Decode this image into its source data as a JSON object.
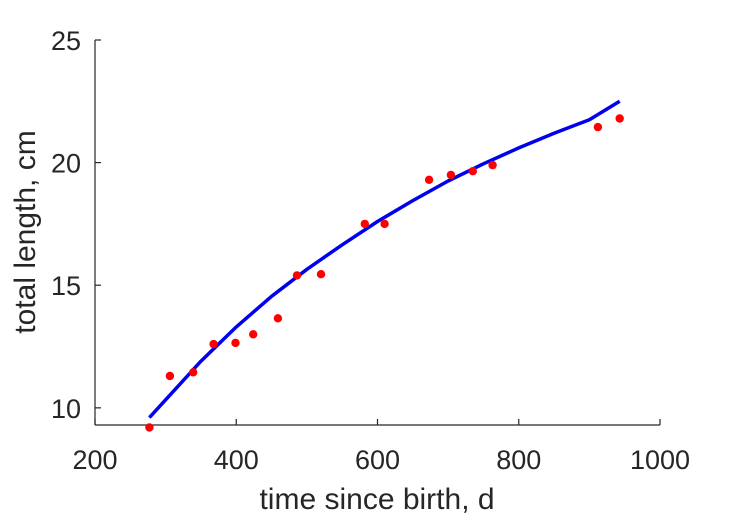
{
  "chart_data": {
    "type": "scatter",
    "title": "",
    "xlabel": "time since birth, d",
    "ylabel": "total length, cm",
    "xlim": [
      200,
      1000
    ],
    "ylim": [
      9.3,
      25
    ],
    "xticks": [
      200,
      400,
      600,
      800,
      1000
    ],
    "yticks": [
      10,
      15,
      20,
      25
    ],
    "grid": false,
    "series": [
      {
        "kind": "points",
        "color": "#ff0000",
        "x": [
          277,
          306,
          339,
          368,
          399,
          424,
          459,
          486,
          520,
          582,
          610,
          673,
          704,
          735,
          763,
          912,
          943
        ],
        "y": [
          9.2,
          11.3,
          11.45,
          12.6,
          12.65,
          13.0,
          13.65,
          15.4,
          15.45,
          17.5,
          17.5,
          19.3,
          19.5,
          19.65,
          19.9,
          21.45,
          21.8
        ]
      },
      {
        "kind": "fit-line",
        "color": "#0000ee",
        "x": [
          277,
          350,
          400,
          450,
          500,
          550,
          600,
          650,
          700,
          750,
          800,
          850,
          900,
          943
        ],
        "y": [
          9.6,
          11.9,
          13.3,
          14.55,
          15.65,
          16.65,
          17.6,
          18.45,
          19.25,
          19.95,
          20.6,
          21.2,
          21.75,
          22.5
        ]
      }
    ]
  }
}
